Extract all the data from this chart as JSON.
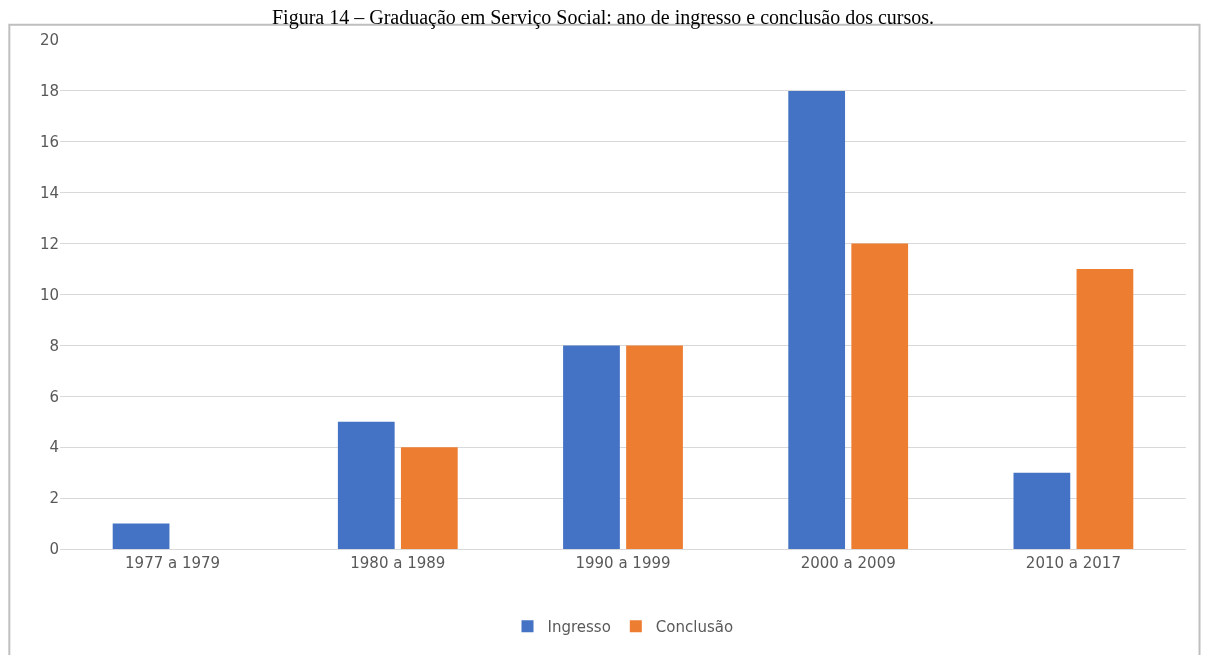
{
  "chart_data": {
    "type": "bar",
    "title": "Figura 14 – Graduação em Serviço Social: ano de ingresso e conclusão dos cursos.",
    "categories": [
      "1977 a 1979",
      "1980 a 1989",
      "1990 a 1999",
      "2000 a 2009",
      "2010 a 2017"
    ],
    "series": [
      {
        "name": "Ingresso",
        "color": "#4472c4",
        "values": [
          1,
          5,
          8,
          18,
          3
        ]
      },
      {
        "name": "Conclusão",
        "color": "#ed7d31",
        "values": [
          0,
          4,
          8,
          12,
          11
        ]
      }
    ],
    "ylim": [
      0,
      20
    ],
    "yticks": [
      0,
      2,
      4,
      6,
      8,
      10,
      12,
      14,
      16,
      18,
      20
    ],
    "grid": "y",
    "legend": "bottom"
  }
}
